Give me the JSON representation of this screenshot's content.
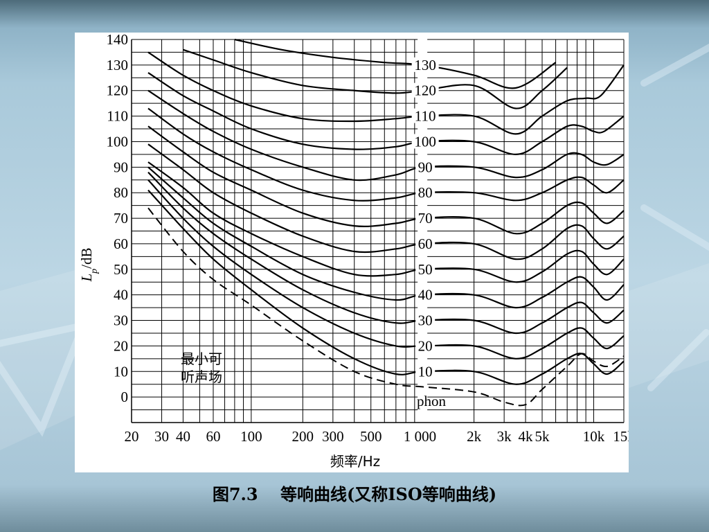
{
  "slide": {
    "caption": "图7.3　 等响曲线(又称ISO等响曲线)",
    "background_color": "#a9c9da"
  },
  "chart_data": {
    "type": "line",
    "title": "",
    "xlabel": "频率/Hz",
    "ylabel": "Lp/dB",
    "ylabel_main": "L",
    "ylabel_sub": "p",
    "ylabel_unit": "/dB",
    "x_scale": "log",
    "xlim": [
      20,
      15000
    ],
    "ylim": [
      -10,
      140
    ],
    "grid": true,
    "x_ticks": [
      {
        "value": 20,
        "label": "20"
      },
      {
        "value": 30,
        "label": "30"
      },
      {
        "value": 40,
        "label": "40"
      },
      {
        "value": 60,
        "label": "60"
      },
      {
        "value": 100,
        "label": "100"
      },
      {
        "value": 200,
        "label": "200"
      },
      {
        "value": 300,
        "label": "300"
      },
      {
        "value": 500,
        "label": "500"
      },
      {
        "value": 1000,
        "label": "1 000"
      },
      {
        "value": 2000,
        "label": "2k"
      },
      {
        "value": 3000,
        "label": "3k"
      },
      {
        "value": 4000,
        "label": "4k"
      },
      {
        "value": 5000,
        "label": "5k"
      },
      {
        "value": 10000,
        "label": "10k"
      },
      {
        "value": 15000,
        "label": "15k"
      }
    ],
    "y_ticks": [
      0,
      10,
      20,
      30,
      40,
      50,
      60,
      70,
      80,
      90,
      100,
      110,
      120,
      130,
      140
    ],
    "phon_labels": [
      "10",
      "20",
      "30",
      "40",
      "50",
      "60",
      "70",
      "80",
      "90",
      "100",
      "110",
      "120",
      "130"
    ],
    "phon_unit": "phon",
    "threshold_label_line1": "最小可",
    "threshold_label_line2": "听声场",
    "series": [
      {
        "phon": 130,
        "x": [
          80,
          150,
          300,
          600,
          1000,
          2000,
          3500,
          6000
        ],
        "y": [
          140,
          136,
          133,
          131,
          130,
          126,
          121,
          131
        ]
      },
      {
        "phon": 120,
        "x": [
          40,
          60,
          100,
          200,
          400,
          700,
          1000,
          2000,
          3500,
          5000,
          7000
        ],
        "y": [
          136,
          132,
          127,
          122,
          120,
          119,
          120,
          122,
          113,
          120,
          129
        ]
      },
      {
        "phon": 110,
        "x": [
          25,
          40,
          60,
          100,
          200,
          400,
          700,
          1000,
          2000,
          3500,
          5000,
          7000,
          9000,
          11000,
          15000
        ],
        "y": [
          135,
          126,
          120,
          114,
          109,
          108,
          109,
          110,
          110,
          103,
          110,
          116,
          117,
          118,
          130
        ]
      },
      {
        "phon": 100,
        "x": [
          25,
          40,
          60,
          100,
          200,
          400,
          700,
          1000,
          2000,
          3500,
          5000,
          7000,
          8500,
          10000,
          11500,
          15000
        ],
        "y": [
          127,
          118,
          112,
          105,
          99,
          97,
          98,
          100,
          100,
          95,
          100,
          106,
          106,
          104,
          104,
          110
        ]
      },
      {
        "phon": 90,
        "x": [
          25,
          40,
          60,
          100,
          200,
          400,
          700,
          1000,
          2000,
          3500,
          5000,
          7000,
          8500,
          10000,
          12000,
          15000
        ],
        "y": [
          120,
          111,
          104,
          97,
          90,
          85,
          87,
          90,
          90,
          86,
          89,
          95,
          95,
          92,
          91,
          95
        ]
      },
      {
        "phon": 80,
        "x": [
          25,
          40,
          60,
          100,
          200,
          400,
          700,
          1000,
          2000,
          3500,
          5000,
          7000,
          8500,
          10000,
          12000,
          15000
        ],
        "y": [
          113,
          103,
          96,
          89,
          81,
          77,
          78,
          80,
          80,
          77,
          80,
          85,
          86,
          83,
          80,
          85
        ]
      },
      {
        "phon": 70,
        "x": [
          25,
          40,
          60,
          100,
          200,
          400,
          700,
          1000,
          2000,
          3500,
          5000,
          7000,
          8500,
          10000,
          12000,
          15000
        ],
        "y": [
          106,
          96,
          88,
          81,
          72,
          67,
          68,
          70,
          70,
          64,
          68,
          75,
          76,
          72,
          68,
          73
        ]
      },
      {
        "phon": 60,
        "x": [
          25,
          40,
          60,
          100,
          200,
          400,
          700,
          1000,
          2000,
          3500,
          5000,
          7000,
          8500,
          10000,
          12000,
          15000
        ],
        "y": [
          99,
          89,
          80,
          72,
          63,
          57,
          58,
          60,
          60,
          54,
          58,
          66,
          67,
          62,
          58,
          63
        ]
      },
      {
        "phon": 50,
        "x": [
          25,
          40,
          60,
          100,
          200,
          400,
          700,
          1000,
          2000,
          3500,
          5000,
          7000,
          8500,
          10000,
          12000,
          15000
        ],
        "y": [
          92,
          82,
          72,
          64,
          55,
          48,
          48,
          50,
          50,
          45,
          49,
          56,
          57,
          52,
          48,
          54
        ]
      },
      {
        "phon": 40,
        "x": [
          25,
          40,
          60,
          100,
          200,
          400,
          700,
          1000,
          2000,
          3500,
          5000,
          7000,
          8500,
          10000,
          12000,
          15000
        ],
        "y": [
          90,
          78,
          68,
          59,
          48,
          41,
          38,
          40,
          40,
          35,
          39,
          45,
          47,
          43,
          38,
          44
        ]
      },
      {
        "phon": 30,
        "x": [
          25,
          40,
          60,
          100,
          200,
          400,
          700,
          1000,
          2000,
          3500,
          5000,
          7000,
          8500,
          10000,
          12000,
          15000
        ],
        "y": [
          88,
          74,
          64,
          54,
          42,
          33,
          29,
          30,
          30,
          25,
          29,
          35,
          37,
          33,
          29,
          34
        ]
      },
      {
        "phon": 20,
        "x": [
          25,
          40,
          60,
          100,
          200,
          400,
          700,
          1000,
          2000,
          3500,
          5000,
          7000,
          8500,
          10000,
          12000,
          15000
        ],
        "y": [
          85,
          70,
          59,
          48,
          35,
          25,
          20,
          20,
          20,
          15,
          19,
          25,
          27,
          23,
          19,
          24
        ]
      },
      {
        "phon": 10,
        "x": [
          25,
          40,
          60,
          100,
          200,
          400,
          700,
          1000,
          2000,
          3500,
          5000,
          7000,
          8500,
          10000,
          12000,
          15000
        ],
        "y": [
          81,
          66,
          54,
          42,
          27,
          15,
          9,
          10,
          10,
          5,
          9,
          15,
          17,
          13,
          9,
          14
        ]
      }
    ],
    "threshold": {
      "name": "最小可听声场",
      "style": "dashed",
      "x": [
        25,
        40,
        60,
        100,
        200,
        400,
        700,
        1000,
        2000,
        3000,
        4000,
        5000,
        7000,
        8500,
        10000,
        12000,
        15000
      ],
      "y": [
        74,
        57,
        46,
        36,
        22,
        10,
        5,
        4,
        2,
        -2,
        -3,
        3,
        12,
        17,
        14,
        12,
        16
      ]
    }
  }
}
